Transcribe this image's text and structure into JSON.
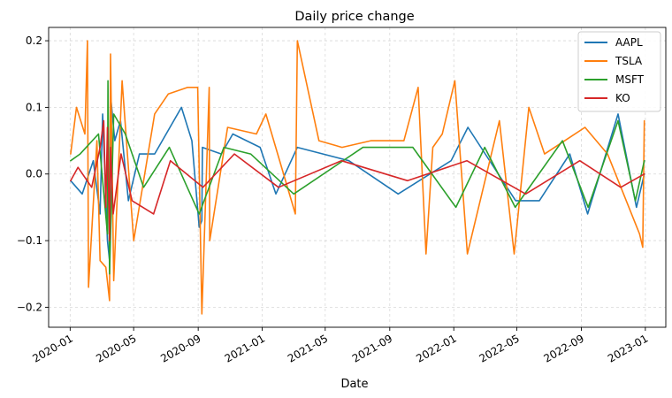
{
  "chart_data": {
    "type": "line",
    "title": "Daily price change",
    "xlabel": "Date",
    "ylabel": "",
    "xlim": [
      "2019-11-21",
      "2023-02-09"
    ],
    "ylim": [
      -0.23,
      0.22
    ],
    "grid": true,
    "legend_position": "top-right",
    "x_ticks": [
      "2020-01",
      "2020-05",
      "2020-09",
      "2021-01",
      "2021-05",
      "2021-09",
      "2022-01",
      "2022-05",
      "2022-09",
      "2023-01"
    ],
    "y_ticks": [
      -0.2,
      -0.1,
      0.0,
      0.1,
      0.2
    ],
    "y_tick_labels": [
      "−0.2",
      "−0.1",
      "0.0",
      "0.1",
      "0.2"
    ],
    "series": [
      {
        "name": "AAPL",
        "color": "#1f77b4",
        "points": [
          [
            "2020-01-02",
            -0.01
          ],
          [
            "2020-01-24",
            -0.03
          ],
          [
            "2020-02-14",
            0.02
          ],
          [
            "2020-02-27",
            -0.06
          ],
          [
            "2020-03-03",
            0.09
          ],
          [
            "2020-03-12",
            -0.1
          ],
          [
            "2020-03-16",
            -0.13
          ],
          [
            "2020-03-19",
            0.11
          ],
          [
            "2020-03-26",
            0.05
          ],
          [
            "2020-04-06",
            0.08
          ],
          [
            "2020-04-21",
            -0.04
          ],
          [
            "2020-05-12",
            0.03
          ],
          [
            "2020-06-10",
            0.03
          ],
          [
            "2020-07-31",
            0.1
          ],
          [
            "2020-08-20",
            0.05
          ],
          [
            "2020-09-03",
            -0.08
          ],
          [
            "2020-09-08",
            -0.07
          ],
          [
            "2020-09-09",
            0.04
          ],
          [
            "2020-10-15",
            0.03
          ],
          [
            "2020-11-06",
            0.06
          ],
          [
            "2020-12-28",
            0.04
          ],
          [
            "2021-01-27",
            -0.03
          ],
          [
            "2021-03-09",
            0.04
          ],
          [
            "2021-06-15",
            0.02
          ],
          [
            "2021-09-17",
            -0.03
          ],
          [
            "2021-12-27",
            0.02
          ],
          [
            "2022-01-28",
            0.07
          ],
          [
            "2022-04-29",
            -0.04
          ],
          [
            "2022-06-13",
            -0.04
          ],
          [
            "2022-08-10",
            0.03
          ],
          [
            "2022-09-13",
            -0.06
          ],
          [
            "2022-11-10",
            0.09
          ],
          [
            "2022-12-15",
            -0.05
          ],
          [
            "2022-12-30",
            0.0
          ]
        ]
      },
      {
        "name": "TSLA",
        "color": "#ff7f0e",
        "points": [
          [
            "2020-01-02",
            0.03
          ],
          [
            "2020-01-13",
            0.1
          ],
          [
            "2020-01-29",
            0.06
          ],
          [
            "2020-02-03",
            0.2
          ],
          [
            "2020-02-05",
            -0.17
          ],
          [
            "2020-02-21",
            0.05
          ],
          [
            "2020-02-27",
            -0.13
          ],
          [
            "2020-03-09",
            -0.14
          ],
          [
            "2020-03-16",
            -0.19
          ],
          [
            "2020-03-18",
            0.18
          ],
          [
            "2020-03-24",
            -0.16
          ],
          [
            "2020-04-09",
            0.14
          ],
          [
            "2020-05-01",
            -0.1
          ],
          [
            "2020-06-10",
            0.09
          ],
          [
            "2020-07-06",
            0.12
          ],
          [
            "2020-08-12",
            0.13
          ],
          [
            "2020-08-31",
            0.13
          ],
          [
            "2020-09-08",
            -0.21
          ],
          [
            "2020-09-22",
            0.13
          ],
          [
            "2020-09-23",
            -0.1
          ],
          [
            "2020-10-27",
            0.07
          ],
          [
            "2020-12-21",
            0.06
          ],
          [
            "2021-01-08",
            0.09
          ],
          [
            "2021-03-05",
            -0.06
          ],
          [
            "2021-03-09",
            0.2
          ],
          [
            "2021-04-19",
            0.05
          ],
          [
            "2021-06-02",
            0.04
          ],
          [
            "2021-07-27",
            0.05
          ],
          [
            "2021-09-28",
            0.05
          ],
          [
            "2021-10-25",
            0.13
          ],
          [
            "2021-11-09",
            -0.12
          ],
          [
            "2021-11-22",
            0.04
          ],
          [
            "2021-12-10",
            0.06
          ],
          [
            "2022-01-03",
            0.14
          ],
          [
            "2022-01-27",
            -0.12
          ],
          [
            "2022-03-29",
            0.08
          ],
          [
            "2022-04-26",
            -0.12
          ],
          [
            "2022-05-24",
            0.1
          ],
          [
            "2022-06-23",
            0.03
          ],
          [
            "2022-09-08",
            0.07
          ],
          [
            "2022-10-21",
            0.03
          ],
          [
            "2022-12-21",
            -0.09
          ],
          [
            "2022-12-27",
            -0.11
          ],
          [
            "2022-12-30",
            0.08
          ]
        ]
      },
      {
        "name": "MSFT",
        "color": "#2ca02c",
        "points": [
          [
            "2020-01-02",
            0.02
          ],
          [
            "2020-01-20",
            0.03
          ],
          [
            "2020-02-24",
            0.06
          ],
          [
            "2020-03-12",
            -0.09
          ],
          [
            "2020-03-13",
            0.14
          ],
          [
            "2020-03-16",
            -0.15
          ],
          [
            "2020-03-24",
            0.09
          ],
          [
            "2020-04-15",
            0.06
          ],
          [
            "2020-05-20",
            -0.02
          ],
          [
            "2020-07-08",
            0.04
          ],
          [
            "2020-09-03",
            -0.06
          ],
          [
            "2020-10-20",
            0.04
          ],
          [
            "2020-12-10",
            0.03
          ],
          [
            "2021-03-02",
            -0.03
          ],
          [
            "2021-07-12",
            0.04
          ],
          [
            "2021-10-15",
            0.04
          ],
          [
            "2022-01-05",
            -0.05
          ],
          [
            "2022-03-01",
            0.04
          ],
          [
            "2022-04-28",
            -0.05
          ],
          [
            "2022-07-27",
            0.05
          ],
          [
            "2022-09-14",
            -0.05
          ],
          [
            "2022-11-10",
            0.08
          ],
          [
            "2022-12-13",
            -0.04
          ],
          [
            "2022-12-30",
            0.02
          ]
        ]
      },
      {
        "name": "KO",
        "color": "#d62728",
        "points": [
          [
            "2020-01-02",
            -0.01
          ],
          [
            "2020-01-16",
            0.01
          ],
          [
            "2020-02-11",
            -0.02
          ],
          [
            "2020-02-27",
            0.04
          ],
          [
            "2020-03-05",
            0.08
          ],
          [
            "2020-03-09",
            -0.05
          ],
          [
            "2020-03-12",
            0.07
          ],
          [
            "2020-03-16",
            -0.1
          ],
          [
            "2020-03-18",
            0.04
          ],
          [
            "2020-03-23",
            -0.06
          ],
          [
            "2020-04-07",
            0.03
          ],
          [
            "2020-04-28",
            -0.04
          ],
          [
            "2020-06-08",
            -0.06
          ],
          [
            "2020-07-10",
            0.02
          ],
          [
            "2020-09-10",
            -0.02
          ],
          [
            "2020-11-09",
            0.03
          ],
          [
            "2021-02-01",
            -0.02
          ],
          [
            "2021-06-01",
            0.02
          ],
          [
            "2021-10-05",
            -0.01
          ],
          [
            "2022-01-26",
            0.02
          ],
          [
            "2022-05-18",
            -0.03
          ],
          [
            "2022-08-29",
            0.02
          ],
          [
            "2022-11-15",
            -0.02
          ],
          [
            "2022-12-30",
            0.0
          ]
        ]
      }
    ]
  }
}
